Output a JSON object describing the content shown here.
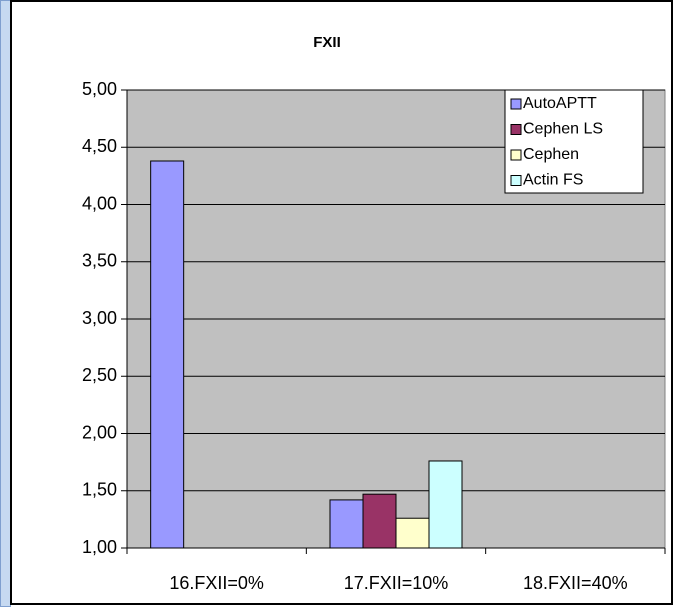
{
  "chart_data": {
    "type": "bar",
    "title": "FXII",
    "categories": [
      "16.FXII=0%",
      "17.FXII=10%",
      "18.FXII=40%"
    ],
    "series": [
      {
        "name": "AutoAPTT",
        "color": "#9999ff",
        "values": [
          4.38,
          1.42,
          null
        ]
      },
      {
        "name": "Cephen LS",
        "color": "#993366",
        "values": [
          null,
          1.47,
          null
        ]
      },
      {
        "name": "Cephen",
        "color": "#ffffcc",
        "values": [
          null,
          1.26,
          null
        ]
      },
      {
        "name": "Actin FS",
        "color": "#ccffff",
        "values": [
          null,
          1.76,
          null
        ]
      }
    ],
    "ylim": [
      1,
      5
    ],
    "yticks": [
      {
        "value": 1,
        "label": "1,00"
      },
      {
        "value": 1.5,
        "label": "1,50"
      },
      {
        "value": 2,
        "label": "2,00"
      },
      {
        "value": 2.5,
        "label": "2,50"
      },
      {
        "value": 3,
        "label": "3,00"
      },
      {
        "value": 3.5,
        "label": "3,50"
      },
      {
        "value": 4,
        "label": "4,00"
      },
      {
        "value": 4.5,
        "label": "4,50"
      },
      {
        "value": 5,
        "label": "5,00"
      }
    ],
    "grid": true,
    "legend": "top-right",
    "plot_background": "#c0c0c0"
  }
}
